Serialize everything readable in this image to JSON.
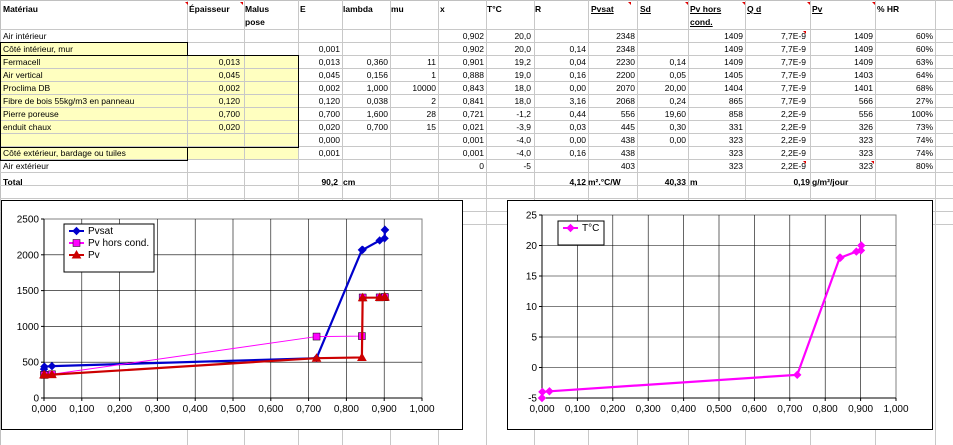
{
  "headers": {
    "materiau": "Matériau",
    "epaisseur": "Épaisseur",
    "malus1": "Malus",
    "malus2": "pose",
    "e": "E",
    "lambda": "lambda",
    "mu": "mu",
    "x": "x",
    "t": "T°C",
    "r": "R",
    "pvsat": "Pvsat",
    "sd": "Sd",
    "pvhors1": "Pv hors",
    "pvhors2": "cond.",
    "qd": "Q d",
    "pv": "Pv",
    "hr": "% HR"
  },
  "rows": [
    {
      "name": "Air intérieur",
      "epaisseur": "",
      "e": "",
      "lambda": "",
      "mu": "",
      "x": "0,902",
      "t": "20,0",
      "r": "",
      "pvsat": "2348",
      "sd": "",
      "pvhors": "1409",
      "qd": "7,7E-9",
      "pv": "1409",
      "hr": "60%"
    },
    {
      "name": "Côté intérieur, mur",
      "epaisseur": "",
      "e": "0,001",
      "lambda": "",
      "mu": "",
      "x": "0,902",
      "t": "20,0",
      "r": "0,14",
      "pvsat": "2348",
      "sd": "",
      "pvhors": "1409",
      "qd": "7,7E-9",
      "pv": "1409",
      "hr": "60%"
    },
    {
      "name": "Fermacell",
      "epaisseur": "0,013",
      "e": "0,013",
      "lambda": "0,360",
      "mu": "11",
      "x": "0,901",
      "t": "19,2",
      "r": "0,04",
      "pvsat": "2230",
      "sd": "0,14",
      "pvhors": "1409",
      "qd": "7,7E-9",
      "pv": "1409",
      "hr": "63%"
    },
    {
      "name": "Air vertical",
      "epaisseur": "0,045",
      "e": "0,045",
      "lambda": "0,156",
      "mu": "1",
      "x": "0,888",
      "t": "19,0",
      "r": "0,16",
      "pvsat": "2200",
      "sd": "0,05",
      "pvhors": "1405",
      "qd": "7,7E-9",
      "pv": "1403",
      "hr": "64%"
    },
    {
      "name": "Proclima DB",
      "epaisseur": "0,002",
      "e": "0,002",
      "lambda": "1,000",
      "mu": "10000",
      "x": "0,843",
      "t": "18,0",
      "r": "0,00",
      "pvsat": "2070",
      "sd": "20,00",
      "pvhors": "1404",
      "qd": "7,7E-9",
      "pv": "1401",
      "hr": "68%"
    },
    {
      "name": "Fibre de bois 55kg/m3 en panneau",
      "epaisseur": "0,120",
      "e": "0,120",
      "lambda": "0,038",
      "mu": "2",
      "x": "0,841",
      "t": "18,0",
      "r": "3,16",
      "pvsat": "2068",
      "sd": "0,24",
      "pvhors": "865",
      "qd": "7,7E-9",
      "pv": "566",
      "hr": "27%"
    },
    {
      "name": "Pierre poreuse",
      "epaisseur": "0,700",
      "e": "0,700",
      "lambda": "1,600",
      "mu": "28",
      "x": "0,721",
      "t": "-1,2",
      "r": "0,44",
      "pvsat": "556",
      "sd": "19,60",
      "pvhors": "858",
      "qd": "2,2E-9",
      "pv": "556",
      "hr": "100%"
    },
    {
      "name": "enduit chaux",
      "epaisseur": "0,020",
      "e": "0,020",
      "lambda": "0,700",
      "mu": "15",
      "x": "0,021",
      "t": "-3,9",
      "r": "0,03",
      "pvsat": "445",
      "sd": "0,30",
      "pvhors": "331",
      "qd": "2,2E-9",
      "pv": "326",
      "hr": "73%"
    },
    {
      "name": "",
      "epaisseur": "",
      "e": "0,000",
      "lambda": "",
      "mu": "",
      "x": "0,001",
      "t": "-4,0",
      "r": "0,00",
      "pvsat": "438",
      "sd": "0,00",
      "pvhors": "323",
      "qd": "2,2E-9",
      "pv": "323",
      "hr": "74%"
    },
    {
      "name": "Côté extérieur, bardage ou tuiles",
      "epaisseur": "",
      "e": "0,001",
      "lambda": "",
      "mu": "",
      "x": "0,001",
      "t": "-4,0",
      "r": "0,16",
      "pvsat": "438",
      "sd": "",
      "pvhors": "323",
      "qd": "2,2E-9",
      "pv": "323",
      "hr": "74%"
    },
    {
      "name": "Air extérieur",
      "epaisseur": "",
      "e": "",
      "lambda": "",
      "mu": "",
      "x": "0",
      "t": "-5",
      "r": "",
      "pvsat": "403",
      "sd": "",
      "pvhors": "323",
      "qd": "2,2E-9",
      "pv": "323",
      "hr": "80%"
    }
  ],
  "total": {
    "label": "Total",
    "e": "90,2",
    "e_unit": "cm",
    "r": "4,12",
    "r_unit": "m².°C/W",
    "sd": "40,33",
    "sd_unit": "m",
    "qd": "0,19",
    "qd_unit": "g/m²/jour"
  },
  "chart_data": [
    {
      "type": "line",
      "xlim": [
        0,
        1
      ],
      "ylim": [
        0,
        2500
      ],
      "xticks": [
        "0,000",
        "0,100",
        "0,200",
        "0,300",
        "0,400",
        "0,500",
        "0,600",
        "0,700",
        "0,800",
        "0,900",
        "1,000"
      ],
      "yticks": [
        "0",
        "500",
        "1000",
        "1500",
        "2000",
        "2500"
      ],
      "legend_position": "top-left",
      "series": [
        {
          "name": "Pvsat",
          "color": "#0000cc",
          "marker": "diamond",
          "x": [
            0.0,
            0.001,
            0.021,
            0.721,
            0.841,
            0.843,
            0.888,
            0.901,
            0.902,
            0.902
          ],
          "y": [
            403,
            438,
            445,
            556,
            2068,
            2070,
            2200,
            2230,
            2348,
            2348
          ]
        },
        {
          "name": "Pv hors cond.",
          "color": "#ff00ff",
          "marker": "square",
          "x": [
            0.0,
            0.001,
            0.021,
            0.721,
            0.841,
            0.843,
            0.888,
            0.901,
            0.902
          ],
          "y": [
            323,
            323,
            331,
            858,
            865,
            1404,
            1405,
            1409,
            1409
          ]
        },
        {
          "name": "Pv",
          "color": "#cc0000",
          "marker": "triangle",
          "x": [
            0.0,
            0.001,
            0.021,
            0.721,
            0.841,
            0.843,
            0.888,
            0.901,
            0.902
          ],
          "y": [
            323,
            323,
            326,
            556,
            566,
            1401,
            1403,
            1409,
            1409
          ]
        }
      ]
    },
    {
      "type": "line",
      "xlim": [
        0,
        1
      ],
      "ylim": [
        -5,
        25
      ],
      "xticks": [
        "0,000",
        "0,100",
        "0,200",
        "0,300",
        "0,400",
        "0,500",
        "0,600",
        "0,700",
        "0,800",
        "0,900",
        "1,000"
      ],
      "yticks": [
        "-5",
        "0",
        "5",
        "10",
        "15",
        "20",
        "25"
      ],
      "legend_position": "top-left",
      "series": [
        {
          "name": "T°C",
          "color": "#ff00ff",
          "marker": "diamond",
          "x": [
            0.0,
            0.001,
            0.021,
            0.721,
            0.841,
            0.843,
            0.888,
            0.901,
            0.902
          ],
          "y": [
            -5,
            -4.0,
            -3.9,
            -1.2,
            18.0,
            18.0,
            19.0,
            19.2,
            20.0
          ]
        }
      ]
    }
  ]
}
